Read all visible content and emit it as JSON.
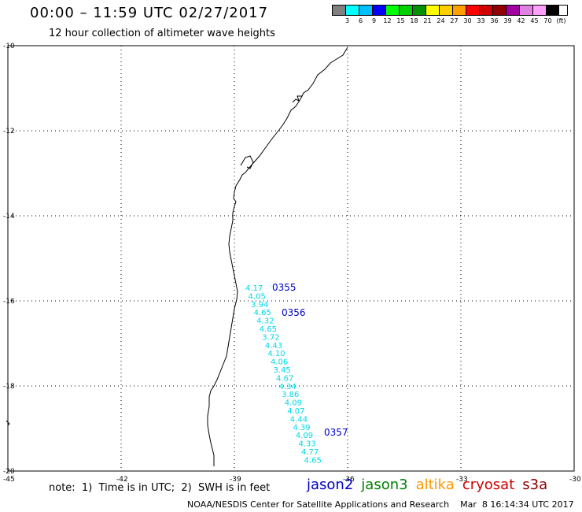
{
  "header": {
    "title": "00:00 – 11:59 UTC 02/27/2017",
    "subtitle": "12 hour collection of altimeter wave heights"
  },
  "legend": {
    "colors": [
      "#808080",
      "#00ffff",
      "#00bfff",
      "#0000ff",
      "#00ff00",
      "#00d000",
      "#009000",
      "#ffff00",
      "#ffd000",
      "#ffa000",
      "#ff0000",
      "#d00000",
      "#900000",
      "#a000a0",
      "#e080e0",
      "#ffa0ff",
      "#000000"
    ],
    "labels": [
      "3",
      "6",
      "9",
      "12",
      "15",
      "18",
      "21",
      "24",
      "27",
      "30",
      "33",
      "36",
      "39",
      "42",
      "45",
      "70",
      "(ft)"
    ]
  },
  "map": {
    "lat_labels": [
      "-10",
      "-12",
      "-14",
      "-16",
      "-18",
      "-20"
    ],
    "lon_labels": [
      "-45",
      "-42",
      "-39",
      "-36",
      "-33",
      "-30"
    ],
    "swh_values": [
      "4.17",
      "4.05",
      "3.94",
      "4.65",
      "4.32",
      "4.65",
      "3.72",
      "4.43",
      "4.10",
      "4.06",
      "3.45",
      "4.67",
      "4.34",
      "3.86",
      "4.09",
      "4.07",
      "4.44",
      "4.39",
      "4.09",
      "4.33",
      "4.77",
      "4.65"
    ],
    "pass_times": [
      "0355",
      "0356",
      "0357"
    ]
  },
  "footer": {
    "note": "note:  1)  Time is in UTC;  2)  SWH is in feet",
    "satellites": [
      {
        "name": "jason2",
        "color": "#0000c8"
      },
      {
        "name": "jason3",
        "color": "#008000"
      },
      {
        "name": "altika",
        "color": "#ff9900"
      },
      {
        "name": "cryosat",
        "color": "#d00000"
      },
      {
        "name": "s3a",
        "color": "#8b0000"
      }
    ],
    "credit": "NOAA/NESDIS Center for Satellite Applications and Research    Mar  8 16:14:34 UTC 2017"
  }
}
